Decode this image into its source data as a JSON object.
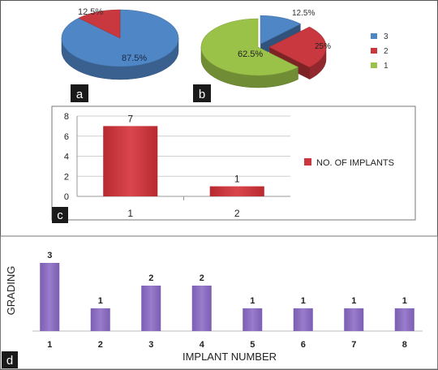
{
  "chart_data": [
    {
      "panel": "a",
      "type": "pie",
      "slices": [
        {
          "label": "87.5%",
          "value": 87.5,
          "color": "#4f86c6"
        },
        {
          "label": "12.5%",
          "value": 12.5,
          "color": "#c8383e"
        }
      ]
    },
    {
      "panel": "b",
      "type": "pie",
      "legend": {
        "position": "right",
        "entries": [
          "3",
          "2",
          "1"
        ]
      },
      "slices": [
        {
          "category": "3",
          "label": "12.5%",
          "value": 12.5,
          "color": "#4f86c6"
        },
        {
          "category": "2",
          "label": "25%",
          "value": 25,
          "color": "#c8383e"
        },
        {
          "category": "1",
          "label": "62.5%",
          "value": 62.5,
          "color": "#9bc248"
        }
      ]
    },
    {
      "panel": "c",
      "type": "bar",
      "categories": [
        "1",
        "2"
      ],
      "series": [
        {
          "name": "NO. OF IMPLANTS",
          "values": [
            7,
            1
          ],
          "color": "#c8383e"
        }
      ],
      "data_labels": [
        "7",
        "1"
      ],
      "ylim": [
        0,
        8
      ],
      "yticks": [
        "0",
        "2",
        "4",
        "6",
        "8"
      ],
      "grid": true,
      "legend": {
        "position": "right"
      }
    },
    {
      "panel": "d",
      "type": "bar",
      "categories": [
        "1",
        "2",
        "3",
        "4",
        "5",
        "6",
        "7",
        "8"
      ],
      "values": [
        3,
        1,
        2,
        2,
        1,
        1,
        1,
        1
      ],
      "data_labels": [
        "3",
        "1",
        "2",
        "2",
        "1",
        "1",
        "1",
        "1"
      ],
      "xlabel": "IMPLANT NUMBER",
      "ylabel": "GRADING",
      "ylim": [
        0,
        3
      ],
      "color": "#8a6cbf",
      "grid": false
    }
  ]
}
